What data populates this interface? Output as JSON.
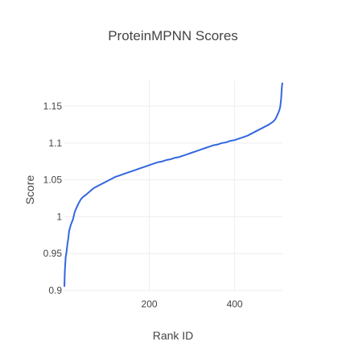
{
  "chart_data": {
    "type": "line",
    "title": "ProteinMPNN Scores",
    "xlabel": "Rank ID",
    "ylabel": "Score",
    "xlim": [
      1,
      512
    ],
    "ylim": [
      0.9,
      1.185
    ],
    "x_ticks": [
      200,
      400
    ],
    "x_tick_labels": [
      "200",
      "400"
    ],
    "y_ticks": [
      0.9,
      0.95,
      1.0,
      1.05,
      1.1,
      1.15
    ],
    "y_tick_labels": [
      "0.9",
      "0.95",
      "1",
      "1.05",
      "1.1",
      "1.15"
    ],
    "grid": true,
    "legend": "none",
    "series": [
      {
        "color": "#3366e0",
        "x": [
          1,
          2,
          4,
          6,
          8,
          10,
          12,
          15,
          18,
          21,
          25,
          30,
          35,
          40,
          45,
          50,
          60,
          70,
          80,
          90,
          100,
          110,
          120,
          130,
          140,
          150,
          160,
          170,
          180,
          190,
          200,
          210,
          220,
          230,
          240,
          250,
          260,
          270,
          280,
          290,
          300,
          310,
          320,
          330,
          340,
          350,
          360,
          370,
          380,
          390,
          400,
          410,
          420,
          430,
          440,
          450,
          460,
          470,
          480,
          490,
          495,
          500,
          503,
          505,
          507,
          509,
          510,
          511,
          512
        ],
        "y": [
          0.905,
          0.925,
          0.945,
          0.952,
          0.962,
          0.97,
          0.98,
          0.987,
          0.992,
          0.996,
          1.006,
          1.013,
          1.019,
          1.024,
          1.027,
          1.029,
          1.034,
          1.039,
          1.042,
          1.045,
          1.048,
          1.051,
          1.054,
          1.056,
          1.058,
          1.06,
          1.062,
          1.064,
          1.066,
          1.068,
          1.07,
          1.072,
          1.074,
          1.075,
          1.077,
          1.078,
          1.08,
          1.081,
          1.083,
          1.085,
          1.087,
          1.089,
          1.091,
          1.093,
          1.095,
          1.097,
          1.098,
          1.1,
          1.101,
          1.103,
          1.104,
          1.106,
          1.108,
          1.11,
          1.113,
          1.116,
          1.119,
          1.122,
          1.125,
          1.129,
          1.132,
          1.138,
          1.142,
          1.145,
          1.15,
          1.16,
          1.17,
          1.178,
          1.182
        ]
      }
    ]
  }
}
